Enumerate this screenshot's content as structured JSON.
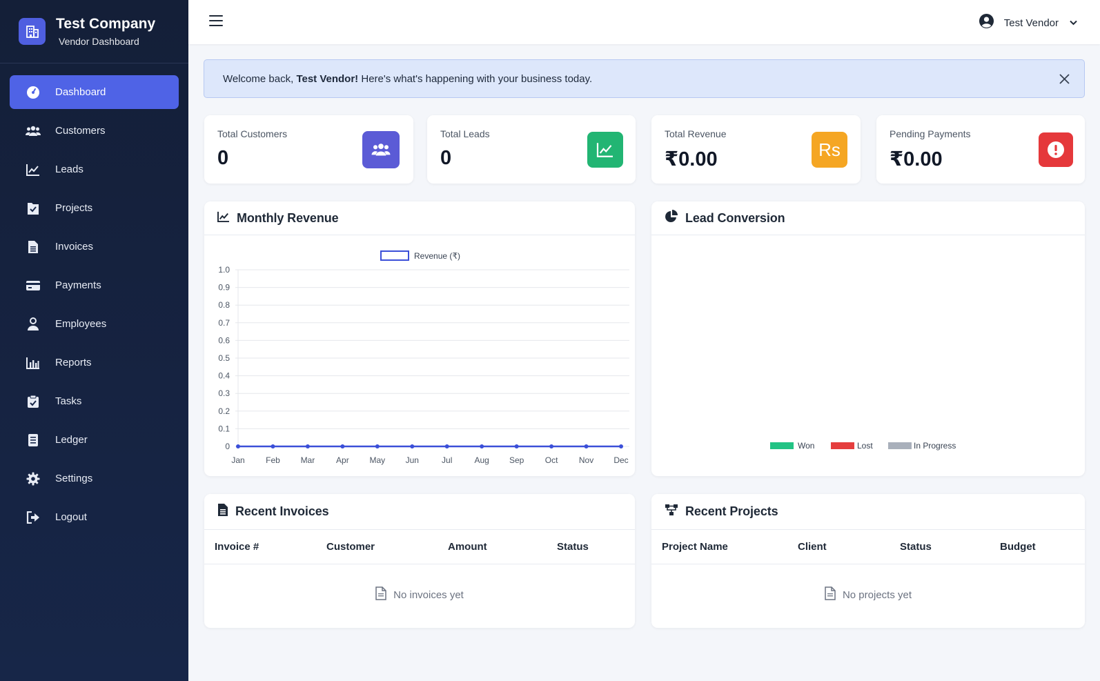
{
  "brand": {
    "title": "Test Company",
    "subtitle": "Vendor Dashboard"
  },
  "sidebar": {
    "items": [
      {
        "label": "Dashboard",
        "icon": "dashboard-icon",
        "active": true
      },
      {
        "label": "Customers",
        "icon": "users-icon"
      },
      {
        "label": "Leads",
        "icon": "chart-line-icon"
      },
      {
        "label": "Projects",
        "icon": "folder-check-icon"
      },
      {
        "label": "Invoices",
        "icon": "document-icon"
      },
      {
        "label": "Payments",
        "icon": "credit-card-icon"
      },
      {
        "label": "Employees",
        "icon": "user-icon"
      },
      {
        "label": "Reports",
        "icon": "bar-chart-icon"
      },
      {
        "label": "Tasks",
        "icon": "clipboard-check-icon"
      },
      {
        "label": "Ledger",
        "icon": "ledger-icon"
      },
      {
        "label": "Settings",
        "icon": "gear-icon"
      },
      {
        "label": "Logout",
        "icon": "logout-icon"
      }
    ]
  },
  "topbar": {
    "user_name": "Test Vendor"
  },
  "alert": {
    "prefix": "Welcome back, ",
    "name": "Test Vendor!",
    "suffix": " Here's what's happening with your business today."
  },
  "stats": [
    {
      "label": "Total Customers",
      "value": "0",
      "icon": "users-icon",
      "color": "#5b5bd6"
    },
    {
      "label": "Total Leads",
      "value": "0",
      "icon": "chart-line-icon",
      "color": "#22b573"
    },
    {
      "label": "Total Revenue",
      "value": "₹0.00",
      "icon": "rupee-icon",
      "icon_text": "Rs",
      "color": "#f5a623"
    },
    {
      "label": "Pending Payments",
      "value": "₹0.00",
      "icon": "alert-icon",
      "color": "#e5383b"
    }
  ],
  "revenue_card": {
    "title": "Monthly Revenue"
  },
  "conversion_card": {
    "title": "Lead Conversion"
  },
  "chart_data": [
    {
      "type": "line",
      "categories": [
        "Jan",
        "Feb",
        "Mar",
        "Apr",
        "May",
        "Jun",
        "Jul",
        "Aug",
        "Sep",
        "Oct",
        "Nov",
        "Dec"
      ],
      "series": [
        {
          "name": "Revenue (₹)",
          "values": [
            0,
            0,
            0,
            0,
            0,
            0,
            0,
            0,
            0,
            0,
            0,
            0
          ],
          "color": "#3b4fd8"
        }
      ],
      "yticks": [
        "0",
        "0.1",
        "0.2",
        "0.3",
        "0.4",
        "0.5",
        "0.6",
        "0.7",
        "0.8",
        "0.9",
        "1.0"
      ],
      "ylim": [
        0,
        1
      ],
      "grid": true,
      "legend": "top"
    },
    {
      "type": "pie",
      "categories": [
        "Won",
        "Lost",
        "In Progress"
      ],
      "values": [
        0,
        0,
        0
      ],
      "colors": [
        "#22c384",
        "#e53e3e",
        "#a9b0bb"
      ],
      "legend": "bottom"
    }
  ],
  "invoices": {
    "title": "Recent Invoices",
    "columns": [
      "Invoice #",
      "Customer",
      "Amount",
      "Status"
    ],
    "empty": "No invoices yet"
  },
  "projects": {
    "title": "Recent Projects",
    "columns": [
      "Project Name",
      "Client",
      "Status",
      "Budget"
    ],
    "empty": "No projects yet"
  }
}
